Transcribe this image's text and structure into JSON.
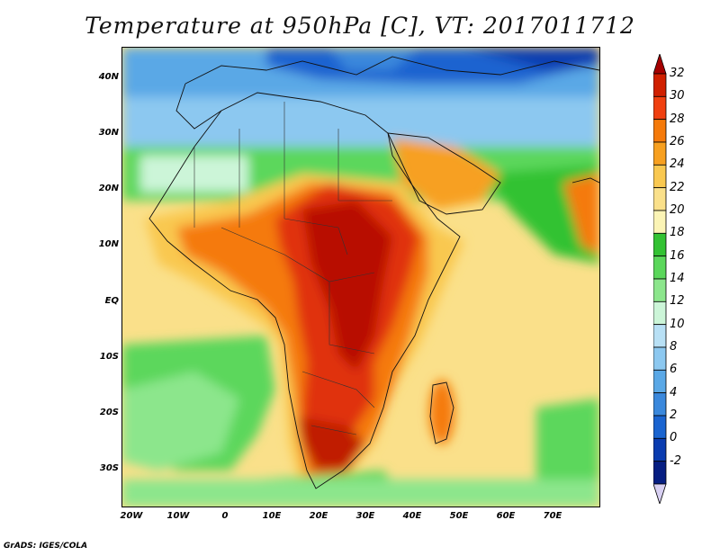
{
  "title": "Temperature at 950hPa [C], VT: 2017011712",
  "credit": "GrADS: IGES/COLA",
  "lat_labels": [
    "40N",
    "30N",
    "20N",
    "10N",
    "EQ",
    "10S",
    "20S",
    "30S"
  ],
  "lon_labels": [
    "20W",
    "10W",
    "0",
    "10E",
    "20E",
    "30E",
    "40E",
    "50E",
    "60E",
    "70E"
  ],
  "colorbar": {
    "labels": [
      "32",
      "30",
      "28",
      "26",
      "24",
      "22",
      "20",
      "18",
      "16",
      "14",
      "12",
      "10",
      "8",
      "6",
      "4",
      "2",
      "0",
      "-2"
    ],
    "colors": [
      "#a50000",
      "#d02000",
      "#f04010",
      "#f57a0a",
      "#f7a020",
      "#f9c850",
      "#fae08a",
      "#fbf4b5",
      "#33c233",
      "#5bd75b",
      "#8ce68c",
      "#ccf5d8",
      "#b8e0f5",
      "#8cc8f0",
      "#5aa8e6",
      "#3a88dc",
      "#1a64d0",
      "#0a3cb0",
      "#061e82",
      "#d8d0f2"
    ]
  }
}
